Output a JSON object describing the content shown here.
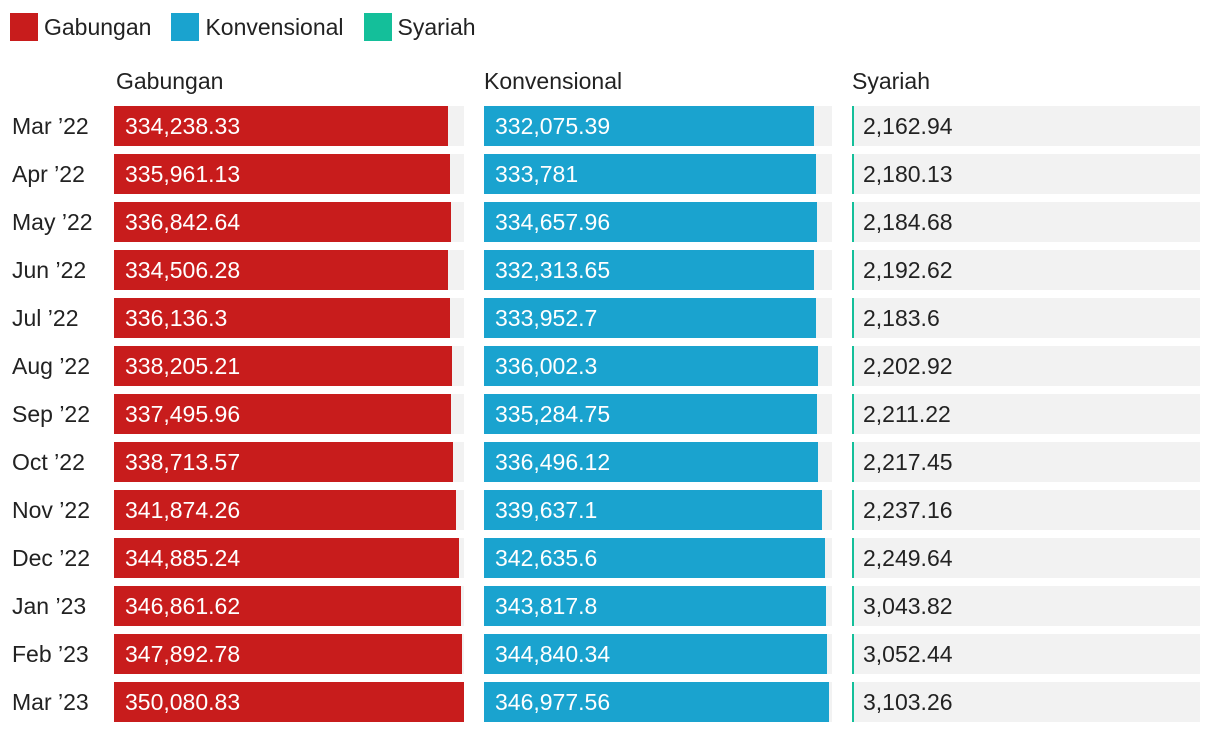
{
  "legend": [
    {
      "label": "Gabungan",
      "color": "#c81c1c"
    },
    {
      "label": "Konvensional",
      "color": "#1aa3cf"
    },
    {
      "label": "Syariah",
      "color": "#14bf9a"
    }
  ],
  "chart_data": {
    "type": "bar",
    "orientation": "horizontal",
    "track_color": "#f2f2f2",
    "categories": [
      "Mar  22",
      "Apr  22",
      "May  22",
      "Jun  22",
      "Jul  22",
      "Aug  22",
      "Sep  22",
      "Oct  22",
      "Nov  22",
      "Dec  22",
      "Jan  23",
      "Feb  23",
      "Mar  23"
    ],
    "series": [
      {
        "name": "Gabungan",
        "color": "#c81c1c",
        "label_color": "#ffffff",
        "values": [
          334238.33,
          335961.13,
          336842.64,
          334506.28,
          336136.3,
          338205.21,
          337495.96,
          338713.57,
          341874.26,
          344885.24,
          346861.62,
          347892.78,
          350080.83
        ],
        "labels": [
          "334,238.33",
          "335,961.13",
          "336,842.64",
          "334,506.28",
          "336,136.3",
          "338,205.21",
          "337,495.96",
          "338,713.57",
          "341,874.26",
          "344,885.24",
          "346,861.62",
          "347,892.78",
          "350,080.83"
        ]
      },
      {
        "name": "Konvensional",
        "color": "#1aa3cf",
        "label_color": "#ffffff",
        "values": [
          332075.39,
          333781,
          334657.96,
          332313.65,
          333952.7,
          336002.3,
          335284.75,
          336496.12,
          339637.1,
          342635.6,
          343817.8,
          344840.34,
          346977.56
        ],
        "labels": [
          "332,075.39",
          "333,781",
          "334,657.96",
          "332,313.65",
          "333,952.7",
          "336,002.3",
          "335,284.75",
          "336,496.12",
          "339,637.1",
          "342,635.6",
          "343,817.8",
          "344,840.34",
          "346,977.56"
        ]
      },
      {
        "name": "Syariah",
        "color": "#14bf9a",
        "label_color": "#222222",
        "values": [
          2162.94,
          2180.13,
          2184.68,
          2192.62,
          2183.6,
          2202.92,
          2211.22,
          2217.45,
          2237.16,
          2249.64,
          3043.82,
          3052.44,
          3103.26
        ],
        "labels": [
          "2,162.94",
          "2,180.13",
          "2,184.68",
          "2,192.62",
          "2,183.6",
          "2,202.92",
          "2,211.22",
          "2,217.45",
          "2,237.16",
          "2,249.64",
          "3,043.82",
          "3,052.44",
          "3,103.26"
        ]
      }
    ],
    "xlim": [
      0,
      350080.83
    ],
    "grid": false,
    "legend_position": "top-left"
  }
}
